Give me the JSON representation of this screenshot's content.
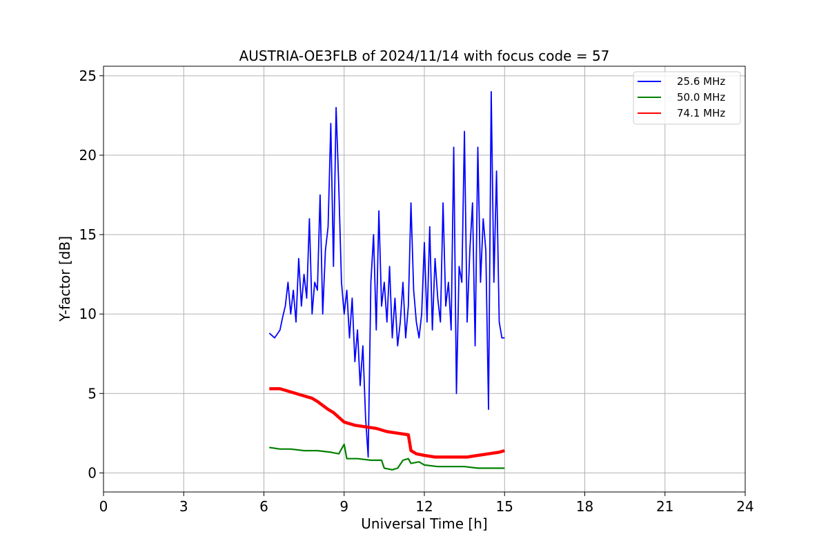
{
  "chart_data": {
    "type": "line",
    "title": "AUSTRIA-OE3FLB of 2024/11/14 with focus code = 57",
    "xlabel": "Universal Time [h]",
    "ylabel": "Y-factor [dB]",
    "xlim": [
      0,
      24
    ],
    "ylim": [
      -1.2,
      25.6
    ],
    "xticks": [
      0,
      3,
      6,
      9,
      12,
      15,
      18,
      21,
      24
    ],
    "yticks": [
      0,
      5,
      10,
      15,
      20,
      25
    ],
    "grid": true,
    "legend_position": "top-right",
    "series": [
      {
        "name": "25.6 MHz",
        "color": "#0000ff",
        "x": [
          6.2,
          6.4,
          6.6,
          6.7,
          6.8,
          6.9,
          7.0,
          7.1,
          7.2,
          7.3,
          7.4,
          7.5,
          7.6,
          7.7,
          7.8,
          7.9,
          8.0,
          8.1,
          8.2,
          8.3,
          8.4,
          8.5,
          8.6,
          8.7,
          8.8,
          8.9,
          9.0,
          9.1,
          9.2,
          9.3,
          9.4,
          9.5,
          9.6,
          9.7,
          9.8,
          9.9,
          10.0,
          10.1,
          10.2,
          10.3,
          10.4,
          10.5,
          10.6,
          10.7,
          10.8,
          10.9,
          11.0,
          11.1,
          11.2,
          11.3,
          11.4,
          11.5,
          11.6,
          11.7,
          11.8,
          11.9,
          12.0,
          12.1,
          12.2,
          12.3,
          12.4,
          12.5,
          12.6,
          12.7,
          12.8,
          12.9,
          13.0,
          13.1,
          13.2,
          13.3,
          13.4,
          13.5,
          13.6,
          13.7,
          13.8,
          13.9,
          14.0,
          14.1,
          14.2,
          14.3,
          14.4,
          14.5,
          14.6,
          14.7,
          14.8,
          14.9,
          15.0
        ],
        "y": [
          8.8,
          8.5,
          9.0,
          9.8,
          10.5,
          12.0,
          10.0,
          11.5,
          9.5,
          13.5,
          10.5,
          12.5,
          11.0,
          16.0,
          10.0,
          12.0,
          11.5,
          17.5,
          10.0,
          14.0,
          15.5,
          22.0,
          13.0,
          23.0,
          18.0,
          12.0,
          10.0,
          11.5,
          8.5,
          11.0,
          7.0,
          9.0,
          5.5,
          8.0,
          3.5,
          1.0,
          12.0,
          15.0,
          9.0,
          16.5,
          10.5,
          12.0,
          9.5,
          13.0,
          8.5,
          11.0,
          8.0,
          9.5,
          12.0,
          8.5,
          10.5,
          17.0,
          11.5,
          9.5,
          8.5,
          10.0,
          14.5,
          9.5,
          15.5,
          9.0,
          13.5,
          11.0,
          9.5,
          17.0,
          10.5,
          12.0,
          9.0,
          20.5,
          5.0,
          13.0,
          12.0,
          21.5,
          9.5,
          14.0,
          17.0,
          8.0,
          20.5,
          12.0,
          16.0,
          14.0,
          4.0,
          24.0,
          12.0,
          19.0,
          9.5,
          8.5,
          8.5
        ]
      },
      {
        "name": "50.0 MHz",
        "color": "#008000",
        "x": [
          6.2,
          6.6,
          7.0,
          7.5,
          8.0,
          8.5,
          8.8,
          8.9,
          9.0,
          9.1,
          9.5,
          10.0,
          10.4,
          10.5,
          10.8,
          11.0,
          11.2,
          11.4,
          11.5,
          11.8,
          12.0,
          12.5,
          13.0,
          13.5,
          14.0,
          14.5,
          15.0
        ],
        "y": [
          1.6,
          1.5,
          1.5,
          1.4,
          1.4,
          1.3,
          1.2,
          1.5,
          1.8,
          0.9,
          0.9,
          0.8,
          0.8,
          0.3,
          0.2,
          0.3,
          0.8,
          0.9,
          0.6,
          0.7,
          0.5,
          0.4,
          0.4,
          0.4,
          0.3,
          0.3,
          0.3
        ]
      },
      {
        "name": "74.1 MHz",
        "color": "#ff0000",
        "x": [
          6.2,
          6.6,
          7.0,
          7.4,
          7.8,
          8.0,
          8.4,
          8.6,
          8.8,
          9.0,
          9.4,
          9.8,
          10.2,
          10.6,
          11.0,
          11.4,
          11.5,
          11.7,
          12.0,
          12.4,
          12.8,
          13.2,
          13.6,
          14.0,
          14.4,
          14.8,
          15.0
        ],
        "y": [
          5.3,
          5.3,
          5.1,
          4.9,
          4.7,
          4.5,
          4.0,
          3.8,
          3.5,
          3.2,
          3.0,
          2.9,
          2.8,
          2.6,
          2.5,
          2.4,
          1.4,
          1.2,
          1.1,
          1.0,
          1.0,
          1.0,
          1.0,
          1.1,
          1.2,
          1.3,
          1.4
        ]
      }
    ]
  }
}
